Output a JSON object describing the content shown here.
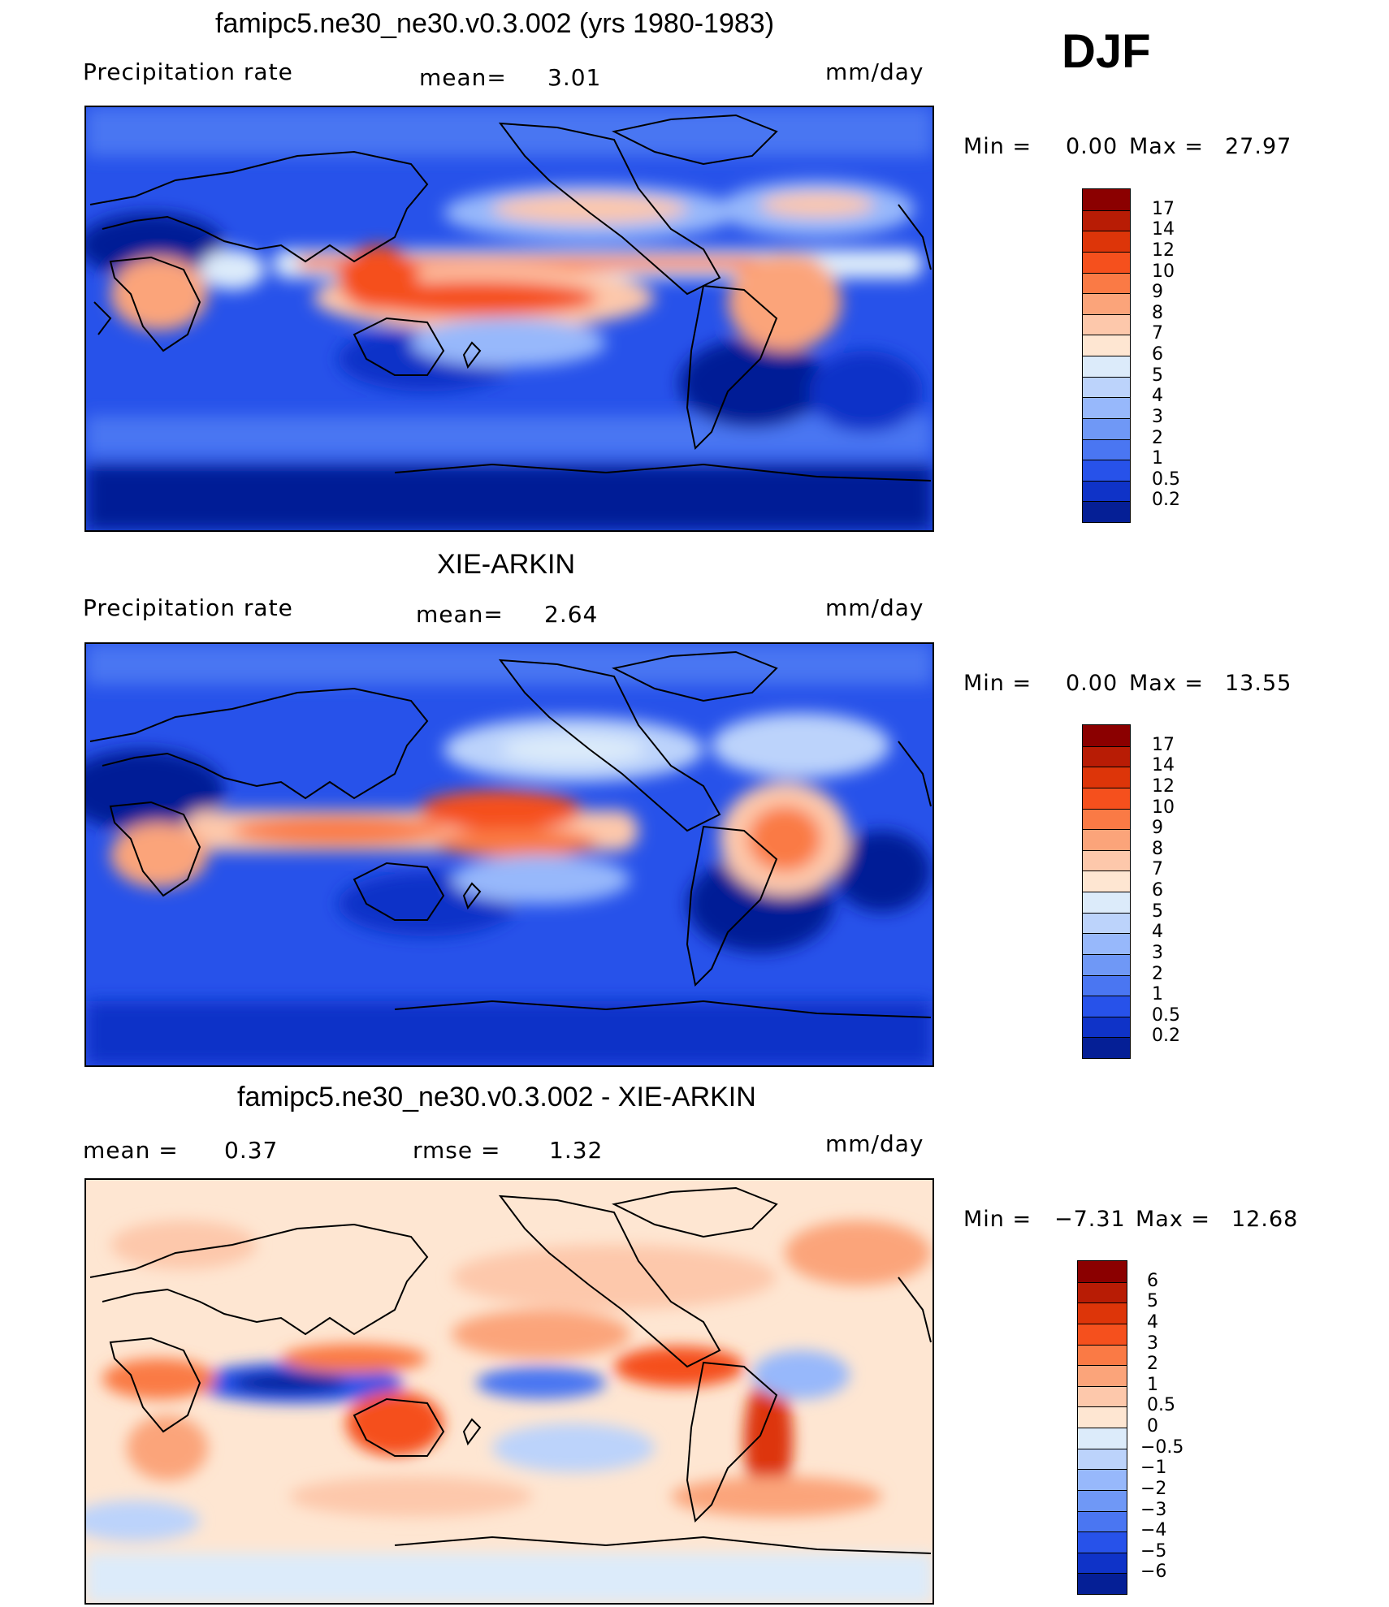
{
  "season": "DJF",
  "panels": [
    {
      "title": "famipc5.ne30_ne30.v0.3.002 (yrs 1980-1983)",
      "left_label": "Precipitation  rate",
      "mid_label": "mean=",
      "mid_value": "3.01",
      "units": "mm/day",
      "min_label": "Min  =",
      "min_value": "0.00",
      "max_label": "Max  =",
      "max_value": "27.97"
    },
    {
      "title": "XIE-ARKIN",
      "left_label": "Precipitation  rate",
      "mid_label": "mean=",
      "mid_value": "2.64",
      "units": "mm/day",
      "min_label": "Min  =",
      "min_value": "0.00",
      "max_label": "Max  =",
      "max_value": "13.55"
    },
    {
      "title": "famipc5.ne30_ne30.v0.3.002 - XIE-ARKIN",
      "left_label": "mean  =",
      "left_value": "0.37",
      "mid_label": "rmse  =",
      "mid_value": "1.32",
      "units": "mm/day",
      "min_label": "Min  =",
      "min_value": "−7.31",
      "max_label": "Max  =",
      "max_value": "12.68"
    }
  ],
  "chart_data": [
    {
      "type": "heatmap",
      "title": "famipc5.ne30_ne30.v0.3.002 (yrs 1980-1983)",
      "variable": "Precipitation rate",
      "units": "mm/day",
      "mean": 3.01,
      "min": 0.0,
      "max": 27.97,
      "colorbar_levels": [
        "17",
        "14",
        "12",
        "10",
        "9",
        "8",
        "7",
        "6",
        "5",
        "4",
        "3",
        "2",
        "1",
        "0.5",
        "0.2"
      ],
      "colorbar_colors": [
        "#8b0000",
        "#b81c05",
        "#dd3509",
        "#f5501d",
        "#fa7a45",
        "#fba47a",
        "#fdc8ab",
        "#fee6d2",
        "#dcebfa",
        "#bcd3fb",
        "#97b8fb",
        "#6f98f6",
        "#4a76f2",
        "#2752ea",
        "#0f33c8",
        "#051f96"
      ]
    },
    {
      "type": "heatmap",
      "title": "XIE-ARKIN",
      "variable": "Precipitation rate",
      "units": "mm/day",
      "mean": 2.64,
      "min": 0.0,
      "max": 13.55,
      "colorbar_levels": [
        "17",
        "14",
        "12",
        "10",
        "9",
        "8",
        "7",
        "6",
        "5",
        "4",
        "3",
        "2",
        "1",
        "0.5",
        "0.2"
      ],
      "colorbar_colors": [
        "#8b0000",
        "#b81c05",
        "#dd3509",
        "#f5501d",
        "#fa7a45",
        "#fba47a",
        "#fdc8ab",
        "#fee6d2",
        "#dcebfa",
        "#bcd3fb",
        "#97b8fb",
        "#6f98f6",
        "#4a76f2",
        "#2752ea",
        "#0f33c8",
        "#051f96"
      ]
    },
    {
      "type": "heatmap",
      "title": "famipc5.ne30_ne30.v0.3.002 - XIE-ARKIN",
      "units": "mm/day",
      "mean": 0.37,
      "rmse": 1.32,
      "min": -7.31,
      "max": 12.68,
      "colorbar_levels": [
        "6",
        "5",
        "4",
        "3",
        "2",
        "1",
        "0.5",
        "0",
        "−0.5",
        "−1",
        "−2",
        "−3",
        "−4",
        "−5",
        "−6"
      ],
      "colorbar_colors": [
        "#8b0000",
        "#b81c05",
        "#dd3509",
        "#f5501d",
        "#fa7a45",
        "#fba47a",
        "#fdc8ab",
        "#fee6d2",
        "#dcebfa",
        "#bcd3fb",
        "#97b8fb",
        "#6f98f6",
        "#4a76f2",
        "#2752ea",
        "#0f33c8",
        "#051f96"
      ]
    }
  ]
}
